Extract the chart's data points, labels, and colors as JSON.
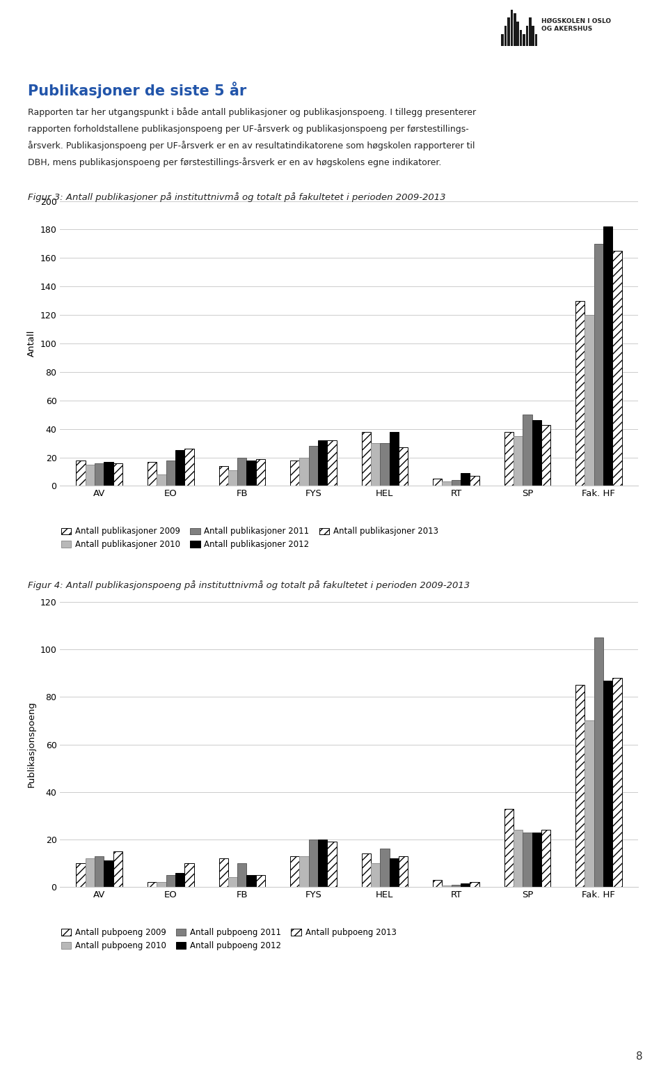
{
  "fig3_title": "Figur 3: Antall publikasjoner på instituttnivmå og totalt på fakultetet i perioden 2009-2013",
  "fig4_title": "Figur 4: Antall publikasjonspoeng på instituttnivmå og totalt på fakultetet i perioden 2009-2013",
  "categories": [
    "AV",
    "EO",
    "FB",
    "FYS",
    "HEL",
    "RT",
    "SP",
    "Fak. HF"
  ],
  "fig3_data": {
    "2009": [
      18,
      17,
      14,
      18,
      38,
      5,
      38,
      130
    ],
    "2010": [
      15,
      8,
      11,
      20,
      30,
      3,
      35,
      120
    ],
    "2011": [
      16,
      18,
      20,
      28,
      30,
      4,
      50,
      170
    ],
    "2012": [
      17,
      25,
      18,
      32,
      38,
      9,
      46,
      182
    ],
    "2013": [
      16,
      26,
      19,
      32,
      27,
      7,
      43,
      165
    ]
  },
  "fig4_data": {
    "2009": [
      10,
      2,
      12,
      13,
      14,
      3,
      33,
      85
    ],
    "2010": [
      12,
      2,
      4,
      13,
      10,
      0.5,
      24,
      70
    ],
    "2011": [
      13,
      5,
      10,
      20,
      16,
      1,
      23,
      105
    ],
    "2012": [
      11,
      6,
      5,
      20,
      12,
      1.5,
      23,
      87
    ],
    "2013": [
      15,
      10,
      5,
      19,
      13,
      2,
      24,
      88
    ]
  },
  "fig3_ylim": [
    0,
    200
  ],
  "fig4_ylim": [
    0,
    120
  ],
  "fig3_yticks": [
    0,
    20,
    40,
    60,
    80,
    100,
    120,
    140,
    160,
    180,
    200
  ],
  "fig4_yticks": [
    0,
    20,
    40,
    60,
    80,
    100,
    120
  ],
  "fig3_ylabel": "Antall",
  "fig4_ylabel": "Publikasjonspoeng",
  "fig3_legend": [
    "Antall publikasjoner 2009",
    "Antall publikasjoner 2010",
    "Antall publikasjoner 2011",
    "Antall publikasjoner 2012",
    "Antall publikasjoner 2013"
  ],
  "fig4_legend": [
    "Antall pubpoeng 2009",
    "Antall pubpoeng 2010",
    "Antall pubpoeng 2011",
    "Antall pubpoeng 2012",
    "Antall pubpoeng 2013"
  ],
  "header_title": "Publikasjoner de siste 5 år",
  "header_line1": "Rapporten tar her utgangspunkt i både antall publikasjoner og publikasjonspoeng. I tillegg presenterer",
  "header_line2": "rapporten forholdstallene publikasjonspoeng per UF-årsverk og publikasjonspoeng per førstestillings-",
  "header_line3": "årsverk. Publikasjonspoeng per UF-årsverk er en av resultatindikatorene som høgskolen rapporterer til",
  "header_line4": "DBH, mens publikasjonspoeng per førstestillings-årsverk er en av høgskolens egne indikatorer.",
  "background_color": "#ffffff"
}
